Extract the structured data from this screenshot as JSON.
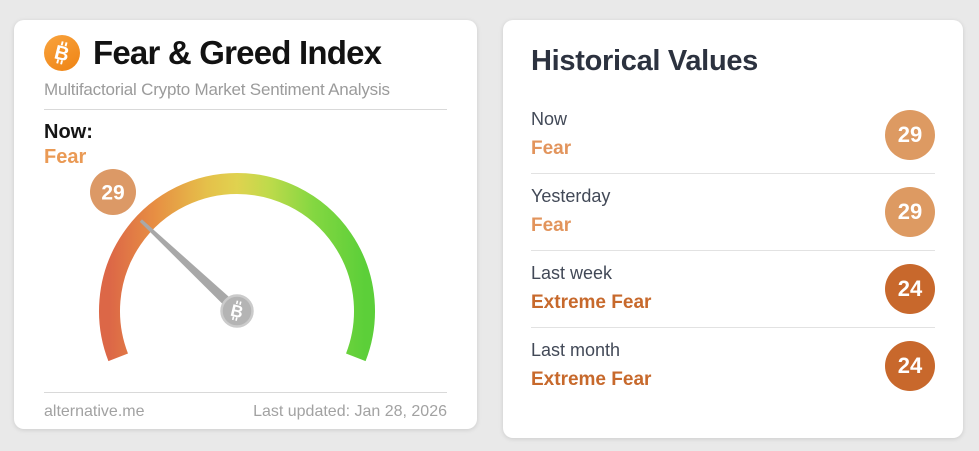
{
  "colors": {
    "page_background": "#e9e9e9",
    "card_background": "#ffffff",
    "bitcoin_orange": "#f7941d",
    "fear_text": "#e2945c",
    "extreme_fear_text": "#c7692c",
    "fear_badge": "#dd9a62",
    "extreme_fear_badge": "#c8682c",
    "needle_gray": "#a8a8a8",
    "gauge_scale": [
      "#dc6747",
      "#e78f43",
      "#e5c04a",
      "#e0d24f",
      "#c0da4b",
      "#84d741",
      "#5ccf39"
    ]
  },
  "index_card": {
    "title": "Fear & Greed Index",
    "subtitle": "Multifactorial Crypto Market Sentiment Analysis",
    "now_label": "Now:",
    "now_classification": "Fear",
    "gauge": {
      "value": 29,
      "min": 0,
      "max": 100,
      "badge_color": "#dc9966"
    },
    "footer_left": "alternative.me",
    "footer_right": "Last updated: Jan 28, 2026"
  },
  "history_card": {
    "title": "Historical Values",
    "rows": [
      {
        "period": "Now",
        "classification": "Fear",
        "value": "29",
        "text_color": "#e2945c",
        "badge_color": "#dd9a62"
      },
      {
        "period": "Yesterday",
        "classification": "Fear",
        "value": "29",
        "text_color": "#e2945c",
        "badge_color": "#dd9a62"
      },
      {
        "period": "Last week",
        "classification": "Extreme Fear",
        "value": "24",
        "text_color": "#c7692c",
        "badge_color": "#c8682c"
      },
      {
        "period": "Last month",
        "classification": "Extreme Fear",
        "value": "24",
        "text_color": "#c7692c",
        "badge_color": "#c8682c"
      }
    ]
  },
  "chart_data": {
    "type": "gauge",
    "title": "Fear & Greed Index",
    "value": 29,
    "range": [
      0,
      100
    ],
    "classification": "Fear",
    "scale_colors_low_to_high": [
      "#dc6747",
      "#e78f43",
      "#e5c04a",
      "#e0d24f",
      "#c0da4b",
      "#84d741",
      "#5ccf39"
    ],
    "historical": [
      {
        "period": "Now",
        "value": 29,
        "classification": "Fear"
      },
      {
        "period": "Yesterday",
        "value": 29,
        "classification": "Fear"
      },
      {
        "period": "Last week",
        "value": 24,
        "classification": "Extreme Fear"
      },
      {
        "period": "Last month",
        "value": 24,
        "classification": "Extreme Fear"
      }
    ]
  }
}
